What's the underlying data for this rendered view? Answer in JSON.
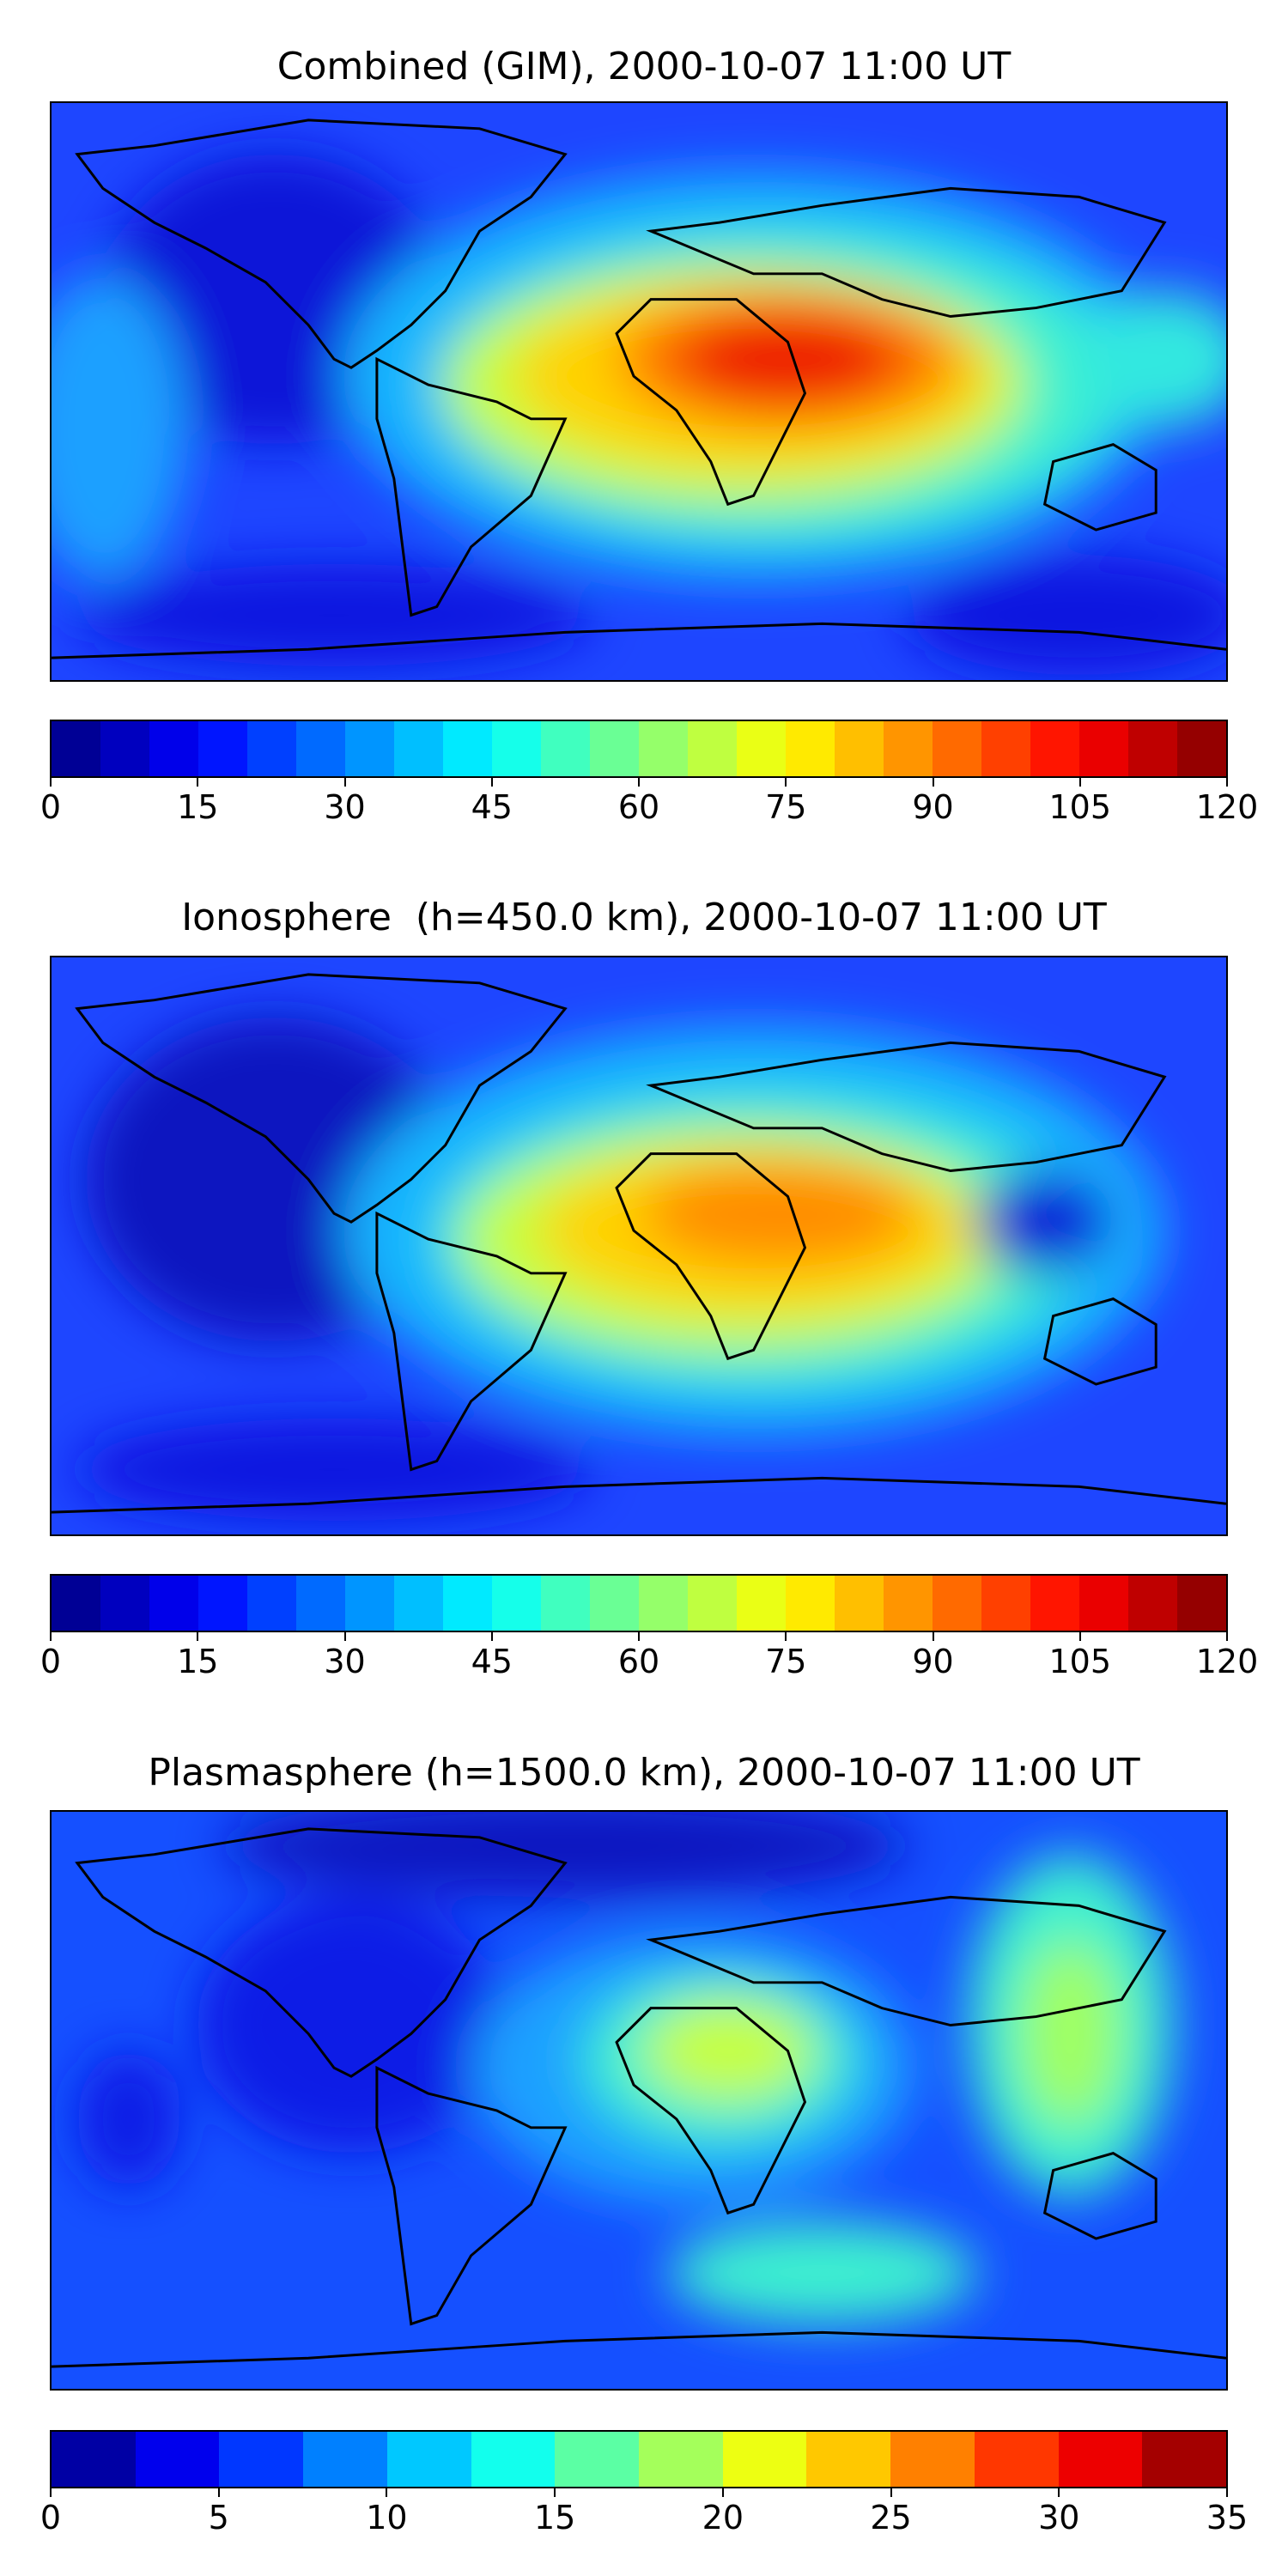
{
  "panels": [
    {
      "title": "Combined (GIM), 2000-10-07 11:00 UT",
      "colorbar": {
        "min": 0,
        "max": 120,
        "levels": 24,
        "ticks": [
          "0",
          "15",
          "30",
          "45",
          "60",
          "75",
          "90",
          "105",
          "120"
        ]
      }
    },
    {
      "title": "Ionosphere  (h=450.0 km), 2000-10-07 11:00 UT",
      "colorbar": {
        "min": 0,
        "max": 120,
        "levels": 24,
        "ticks": [
          "0",
          "15",
          "30",
          "45",
          "60",
          "75",
          "90",
          "105",
          "120"
        ]
      }
    },
    {
      "title": "Plasmasphere (h=1500.0 km), 2000-10-07 11:00 UT",
      "colorbar": {
        "min": 0,
        "max": 35,
        "levels": 14,
        "ticks": [
          "0",
          "5",
          "10",
          "15",
          "20",
          "25",
          "30",
          "35"
        ]
      }
    }
  ],
  "colormap": "jet"
}
